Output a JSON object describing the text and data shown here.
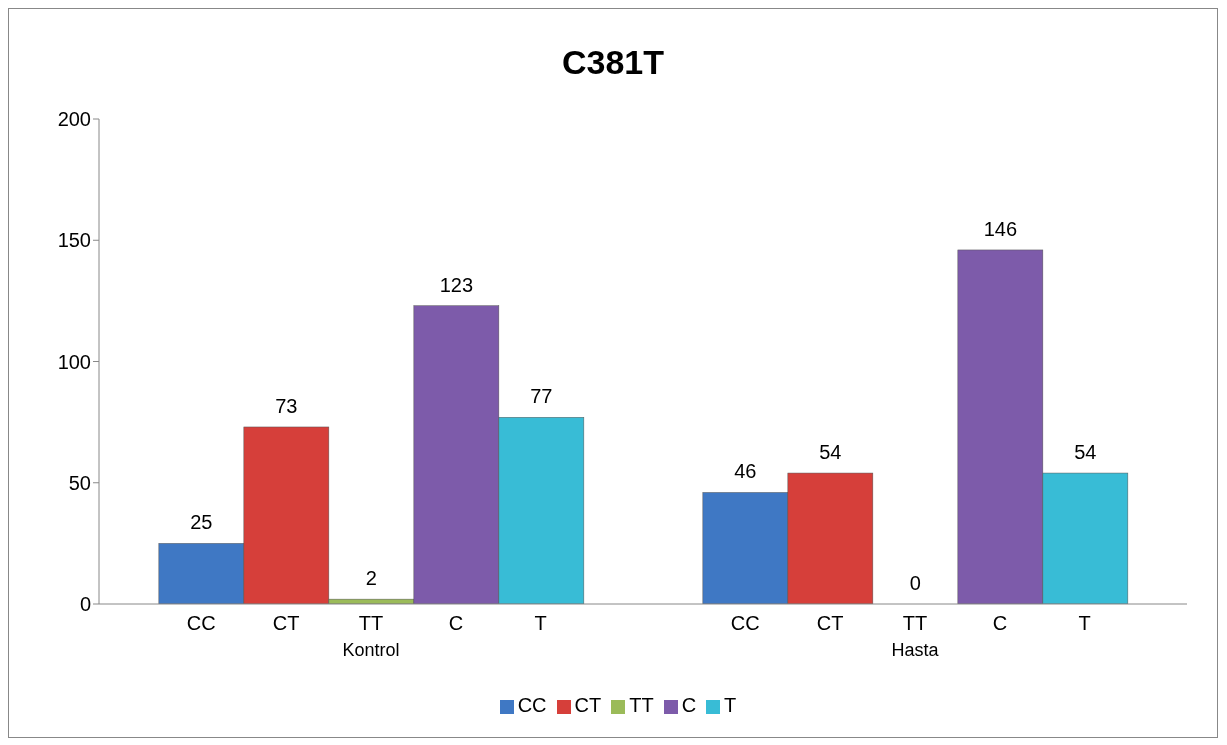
{
  "chart_data": {
    "type": "bar",
    "title": "C381T",
    "categories": [
      "Kontrol",
      "Hasta"
    ],
    "series": [
      {
        "name": "CC",
        "color": "#3f78c4",
        "values": [
          25,
          46
        ]
      },
      {
        "name": "CT",
        "color": "#d63f3a",
        "values": [
          73,
          54
        ]
      },
      {
        "name": "TT",
        "color": "#9bbb59",
        "values": [
          2,
          0
        ]
      },
      {
        "name": "C",
        "color": "#7d5baa",
        "values": [
          123,
          146
        ]
      },
      {
        "name": "T",
        "color": "#38bcd6",
        "values": [
          77,
          54
        ]
      }
    ],
    "ylim": [
      0,
      200
    ],
    "yticks": [
      0,
      50,
      100,
      150,
      200
    ],
    "grid": false,
    "legend": "bottom",
    "data_labels": true
  }
}
